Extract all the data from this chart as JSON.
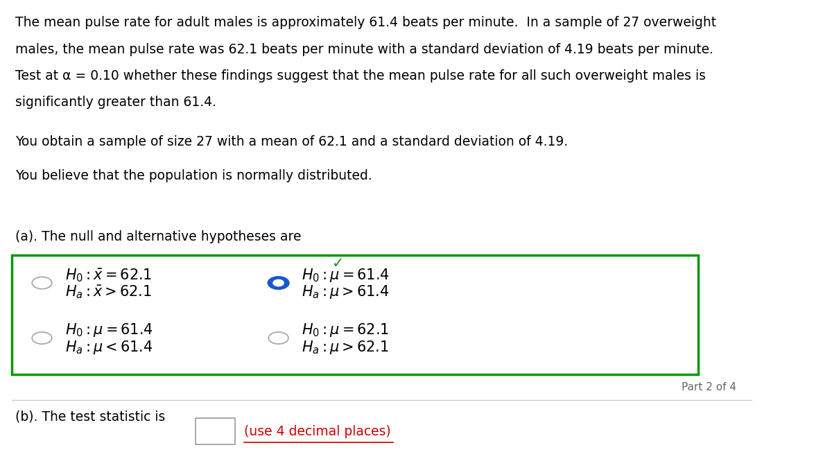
{
  "bg_color": "#ffffff",
  "line1": "The mean pulse rate for adult males is approximately 61.4 beats per minute.  In a sample of 27 overweight",
  "line2": "males, the mean pulse rate was 62.1 beats per minute with a standard deviation of 4.19 beats per minute.",
  "line3": "Test at α = 0.10 whether these findings suggest that the mean pulse rate for all such overweight males is",
  "line4": "significantly greater than 61.4.",
  "paragraph2": "You obtain a sample of size 27 with a mean of 62.1 and a standard deviation of 4.19.",
  "paragraph3": "You believe that the population is normally distributed.",
  "part_a_label": "(a). The null and alternative hypotheses are",
  "box_color": "#009900",
  "radio_options": [
    {
      "text_line1": "$H_0 : \\bar{x} = 62.1$",
      "text_line2": "$H_a : \\bar{x} > 62.1$",
      "selected": false,
      "col": 0,
      "row": 0
    },
    {
      "text_line1": "$H_0 : \\mu = 61.4$",
      "text_line2": "$H_a : \\mu > 61.4$",
      "selected": true,
      "col": 1,
      "row": 0
    },
    {
      "text_line1": "$H_0 : \\mu = 61.4$",
      "text_line2": "$H_a : \\mu < 61.4$",
      "selected": false,
      "col": 0,
      "row": 1
    },
    {
      "text_line1": "$H_0 : \\mu = 62.1$",
      "text_line2": "$H_a : \\mu > 62.1$",
      "selected": false,
      "col": 1,
      "row": 1
    }
  ],
  "part2_label": "Part 2 of 4",
  "part_b_label": "(b). The test statistic is",
  "part_b_hint": "(use 4 decimal places)",
  "hint_color": "#cc0000",
  "font_size_body": 13.5,
  "font_size_math": 14,
  "font_size_small": 11
}
